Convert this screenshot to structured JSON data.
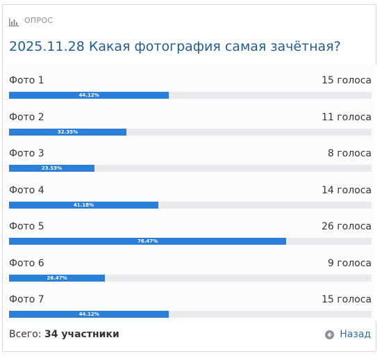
{
  "header": {
    "label": "ОПРОС",
    "icon": "bar-chart-icon"
  },
  "title": "2025.11.28 Какая фотография самая зачётная?",
  "options": [
    {
      "label": "Фото 1",
      "votes": "15 голоса",
      "percent_label": "44.12%",
      "percent": 44.12
    },
    {
      "label": "Фото 2",
      "votes": "11 голоса",
      "percent_label": "32.35%",
      "percent": 32.35
    },
    {
      "label": "Фото 3",
      "votes": "8 голоса",
      "percent_label": "23.53%",
      "percent": 23.53
    },
    {
      "label": "Фото 4",
      "votes": "14 голоса",
      "percent_label": "41.18%",
      "percent": 41.18
    },
    {
      "label": "Фото 5",
      "votes": "26 голоса",
      "percent_label": "76.47%",
      "percent": 76.47
    },
    {
      "label": "Фото 6",
      "votes": "9 голоса",
      "percent_label": "26.47%",
      "percent": 26.47
    },
    {
      "label": "Фото 7",
      "votes": "15 голоса",
      "percent_label": "44.12%",
      "percent": 44.12
    }
  ],
  "footer": {
    "total_label": "Всего:",
    "total_value": "34 участники",
    "back_label": "Назад",
    "back_icon": "arrow-left-circle-icon"
  },
  "colors": {
    "title": "#1f5c93",
    "bar": "#2a7fda",
    "track": "#e8eaed",
    "link": "#2a6fb8"
  }
}
